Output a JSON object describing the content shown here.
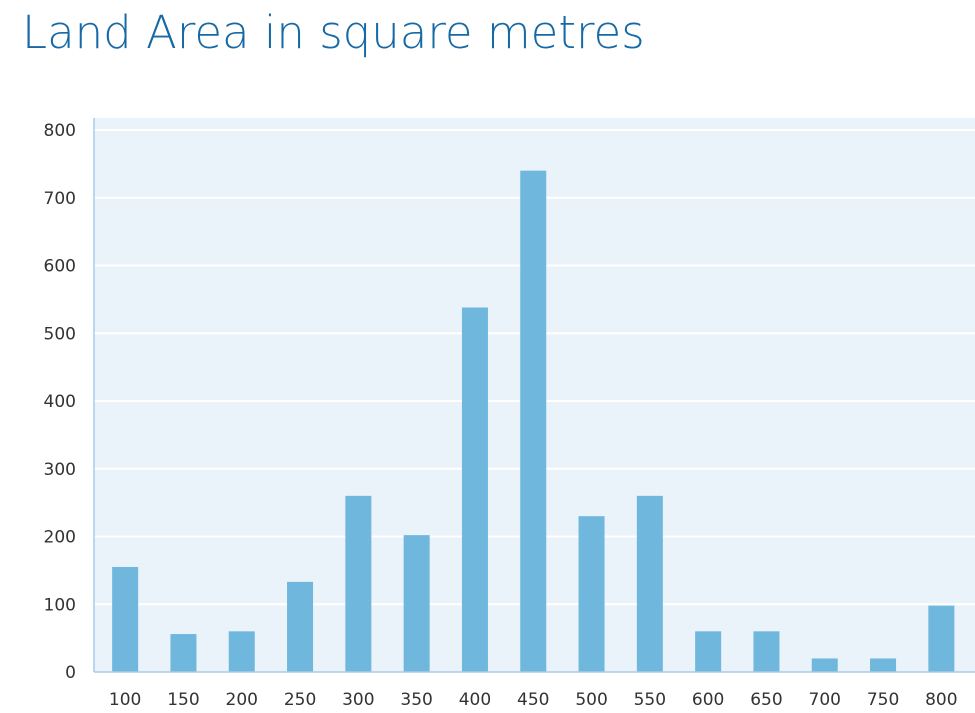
{
  "chart_data": {
    "type": "bar",
    "title": "Land Area in square metres",
    "xlabel": "",
    "ylabel": "",
    "categories": [
      "100",
      "150",
      "200",
      "250",
      "300",
      "350",
      "400",
      "450",
      "500",
      "550",
      "600",
      "650",
      "700",
      "750",
      "800"
    ],
    "values": [
      155,
      56,
      60,
      133,
      260,
      202,
      538,
      740,
      230,
      260,
      60,
      60,
      20,
      20,
      98
    ],
    "ylim": [
      0,
      800
    ],
    "yticks": [
      "0",
      "100",
      "200",
      "300",
      "400",
      "500",
      "600",
      "700",
      "800"
    ],
    "grid": true,
    "legend": "none",
    "colors": {
      "bar": "#6fb7dd",
      "plot_background": "#eaf2fa",
      "gridline": "#ffffff",
      "axis": "#a9cbe6",
      "title": "#1769a6",
      "tick_text": "#333333"
    }
  }
}
